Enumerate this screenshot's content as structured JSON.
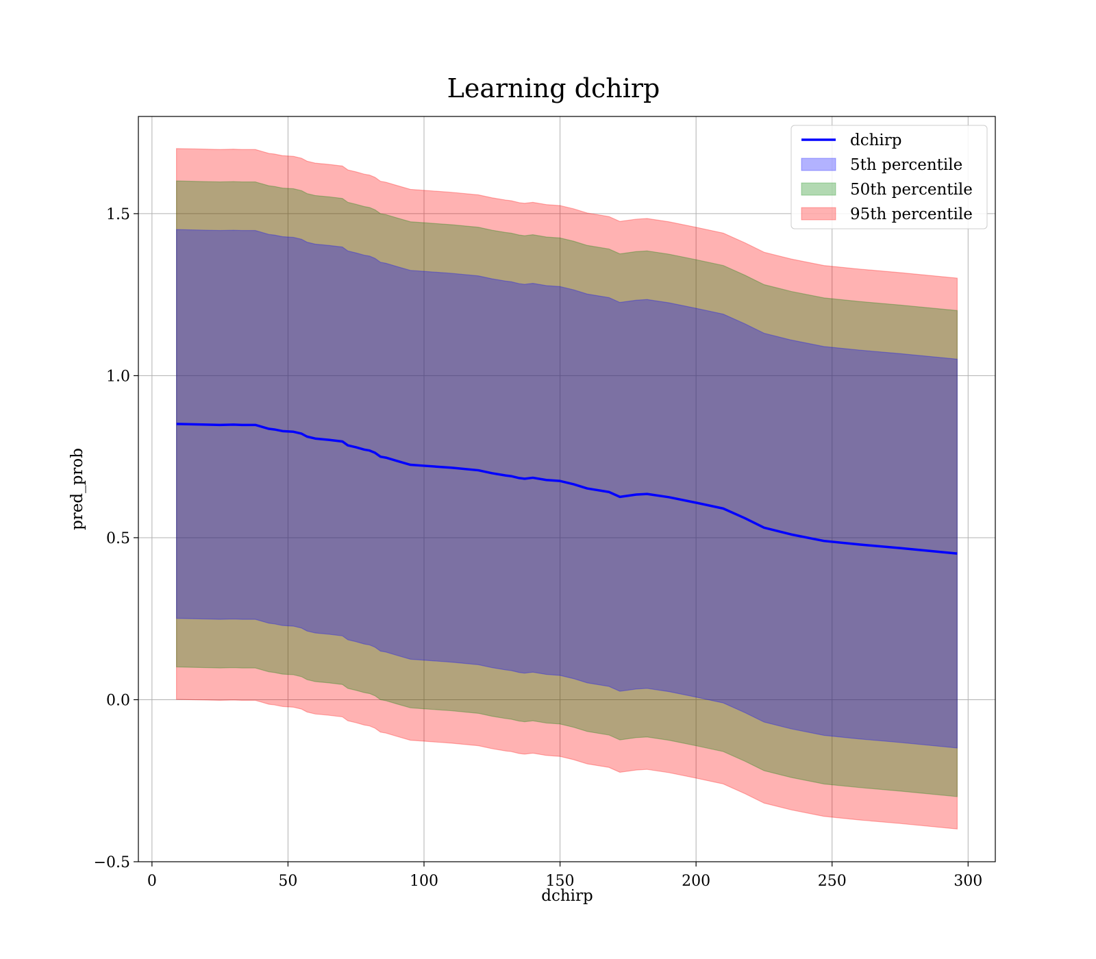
{
  "chart_data": {
    "type": "line",
    "title": "Learning dchirp",
    "xlabel": "dchirp",
    "ylabel": "pred_prob",
    "xlim": [
      -5,
      310
    ],
    "ylim": [
      -0.5,
      1.8
    ],
    "xticks": [
      0,
      50,
      100,
      150,
      200,
      250,
      300
    ],
    "yticks": [
      -0.5,
      0.0,
      0.5,
      1.0,
      1.5
    ],
    "xtick_labels": [
      "0",
      "50",
      "100",
      "150",
      "200",
      "250",
      "300"
    ],
    "ytick_labels": [
      "−0.5",
      "0.0",
      "0.5",
      "1.0",
      "1.5"
    ],
    "grid": true,
    "legend_position": "top-right",
    "x": [
      9,
      20,
      25,
      30,
      33,
      38,
      43,
      45,
      48,
      52,
      55,
      57,
      60,
      65,
      70,
      72,
      75,
      78,
      80,
      82,
      84,
      86,
      90,
      95,
      100,
      110,
      120,
      125,
      130,
      132,
      135,
      137,
      140,
      145,
      150,
      155,
      160,
      168,
      172,
      178,
      182,
      190,
      200,
      210,
      218,
      225,
      235,
      247,
      260,
      275,
      296
    ],
    "series": [
      {
        "name": "dchirp",
        "kind": "line",
        "color": "#0000ff",
        "values": [
          0.851,
          0.849,
          0.848,
          0.849,
          0.848,
          0.848,
          0.836,
          0.834,
          0.829,
          0.827,
          0.821,
          0.812,
          0.806,
          0.802,
          0.797,
          0.785,
          0.779,
          0.772,
          0.769,
          0.762,
          0.75,
          0.747,
          0.737,
          0.725,
          0.722,
          0.716,
          0.708,
          0.699,
          0.692,
          0.69,
          0.684,
          0.682,
          0.685,
          0.678,
          0.675,
          0.665,
          0.652,
          0.641,
          0.626,
          0.633,
          0.635,
          0.625,
          0.608,
          0.59,
          0.56,
          0.531,
          0.51,
          0.49,
          0.479,
          0.468,
          0.451
        ]
      },
      {
        "name": "5th percentile",
        "kind": "band",
        "color": "#0000ff",
        "half_width": [
          0.6,
          0.6,
          0.6,
          0.6,
          0.6,
          0.6,
          0.6,
          0.6,
          0.6,
          0.6,
          0.6,
          0.6,
          0.6,
          0.6,
          0.6,
          0.6,
          0.6,
          0.6,
          0.6,
          0.6,
          0.6,
          0.6,
          0.6,
          0.6,
          0.6,
          0.6,
          0.6,
          0.6,
          0.6,
          0.6,
          0.6,
          0.6,
          0.6,
          0.6,
          0.6,
          0.6,
          0.6,
          0.6,
          0.6,
          0.6,
          0.6,
          0.6,
          0.6,
          0.6,
          0.6,
          0.6,
          0.6,
          0.6,
          0.6,
          0.6,
          0.6
        ]
      },
      {
        "name": "50th percentile",
        "kind": "band",
        "color": "#008000",
        "half_width": [
          0.75,
          0.75,
          0.75,
          0.75,
          0.75,
          0.75,
          0.75,
          0.75,
          0.75,
          0.75,
          0.75,
          0.75,
          0.75,
          0.75,
          0.75,
          0.75,
          0.75,
          0.75,
          0.75,
          0.75,
          0.75,
          0.75,
          0.75,
          0.75,
          0.75,
          0.75,
          0.75,
          0.75,
          0.75,
          0.75,
          0.75,
          0.75,
          0.75,
          0.75,
          0.75,
          0.75,
          0.75,
          0.75,
          0.75,
          0.75,
          0.75,
          0.75,
          0.75,
          0.75,
          0.75,
          0.75,
          0.75,
          0.75,
          0.75,
          0.75,
          0.75
        ]
      },
      {
        "name": "95th percentile",
        "kind": "band",
        "color": "#ff0000",
        "half_width": [
          0.85,
          0.85,
          0.85,
          0.85,
          0.85,
          0.85,
          0.85,
          0.85,
          0.85,
          0.85,
          0.85,
          0.85,
          0.85,
          0.85,
          0.85,
          0.85,
          0.85,
          0.85,
          0.85,
          0.85,
          0.85,
          0.85,
          0.85,
          0.85,
          0.85,
          0.85,
          0.85,
          0.85,
          0.85,
          0.85,
          0.85,
          0.85,
          0.85,
          0.85,
          0.85,
          0.85,
          0.85,
          0.85,
          0.85,
          0.85,
          0.85,
          0.85,
          0.85,
          0.85,
          0.85,
          0.85,
          0.85,
          0.85,
          0.85,
          0.85,
          0.85
        ]
      }
    ]
  }
}
